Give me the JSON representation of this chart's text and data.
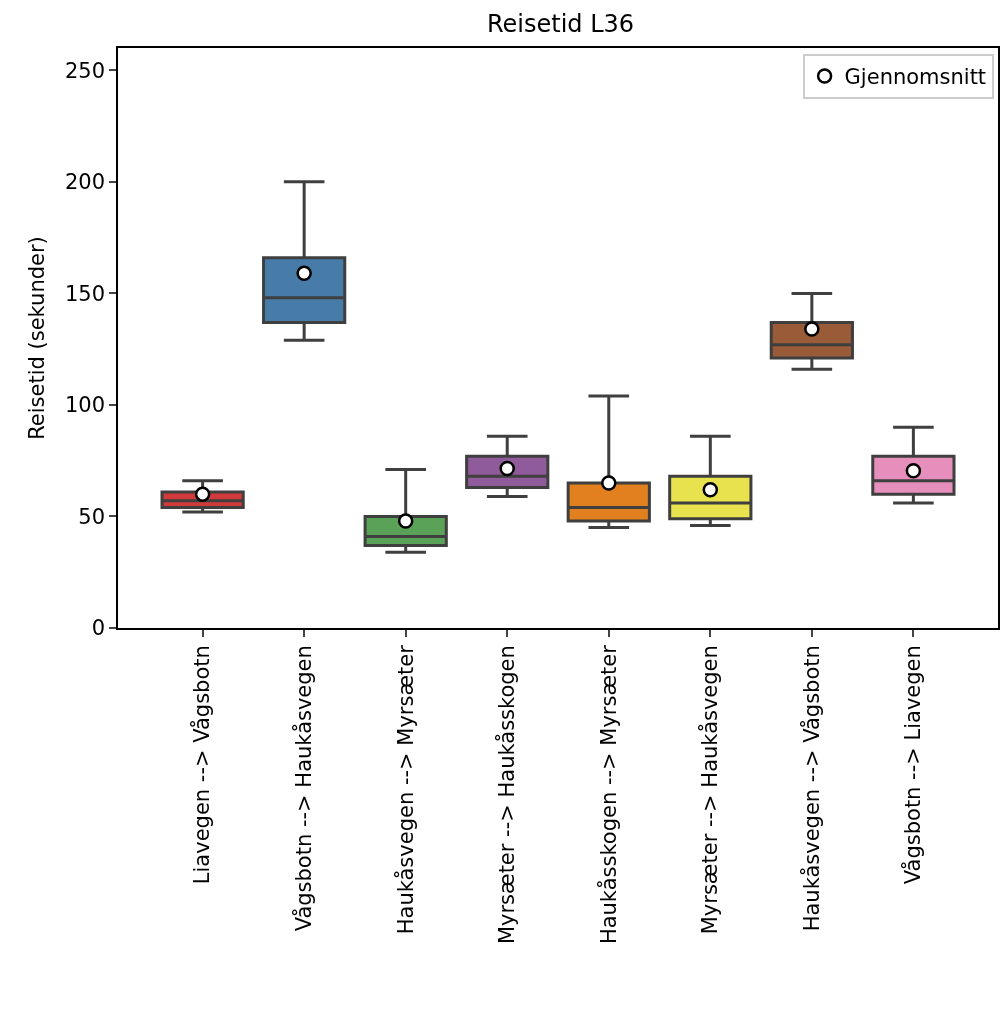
{
  "chart_data": {
    "type": "box",
    "title": "Reisetid L36",
    "ylabel": "Reisetid (sekunder)",
    "categories": [
      "Liavegen --> Vågsbotn",
      "Vågsbotn --> Haukåsvegen",
      "Haukåsvegen --> Myrsæter",
      "Myrsæter --> Haukåsskogen",
      "Haukåsskogen --> Myrsæter",
      "Myrsæter --> Haukåsvegen",
      "Haukåsvegen --> Vågsbotn",
      "Vågsbotn --> Liavegen"
    ],
    "colors": [
      "#d03a3a",
      "#477ca8",
      "#59a257",
      "#905b9a",
      "#e2801f",
      "#e8e24e",
      "#9a5b38",
      "#e68fbd"
    ],
    "boxes": [
      {
        "low": 52,
        "q1": 54,
        "median": 57,
        "q3": 61,
        "high": 66
      },
      {
        "low": 129,
        "q1": 137,
        "median": 148,
        "q3": 166,
        "high": 200
      },
      {
        "low": 34,
        "q1": 37,
        "median": 41,
        "q3": 50,
        "high": 71
      },
      {
        "low": 59,
        "q1": 63,
        "median": 68,
        "q3": 77,
        "high": 86
      },
      {
        "low": 45,
        "q1": 48,
        "median": 54,
        "q3": 65,
        "high": 104
      },
      {
        "low": 46,
        "q1": 49,
        "median": 56,
        "q3": 68,
        "high": 86
      },
      {
        "low": 116,
        "q1": 121,
        "median": 127,
        "q3": 137,
        "high": 150
      },
      {
        "low": 56,
        "q1": 60,
        "median": 66,
        "q3": 77,
        "high": 90
      }
    ],
    "series": [
      {
        "type": "scatter",
        "name": "Gjennomsnitt",
        "color": "#ffffff",
        "marker": "circle",
        "x": [
          "Liavegen --> Vågsbotn",
          "Vågsbotn --> Haukåsvegen",
          "Haukåsvegen --> Myrsæter",
          "Myrsæter --> Haukåsskogen",
          "Haukåsskogen --> Myrsæter",
          "Myrsæter --> Haukåsvegen",
          "Haukåsvegen --> Vågsbotn",
          "Vågsbotn --> Liavegen"
        ],
        "values": [
          60,
          159,
          48,
          71.5,
          65,
          62,
          134,
          70.5
        ]
      }
    ],
    "ylim": [
      0,
      260
    ],
    "yticks": [
      0,
      50,
      100,
      150,
      200,
      250
    ],
    "legend": "top right"
  }
}
